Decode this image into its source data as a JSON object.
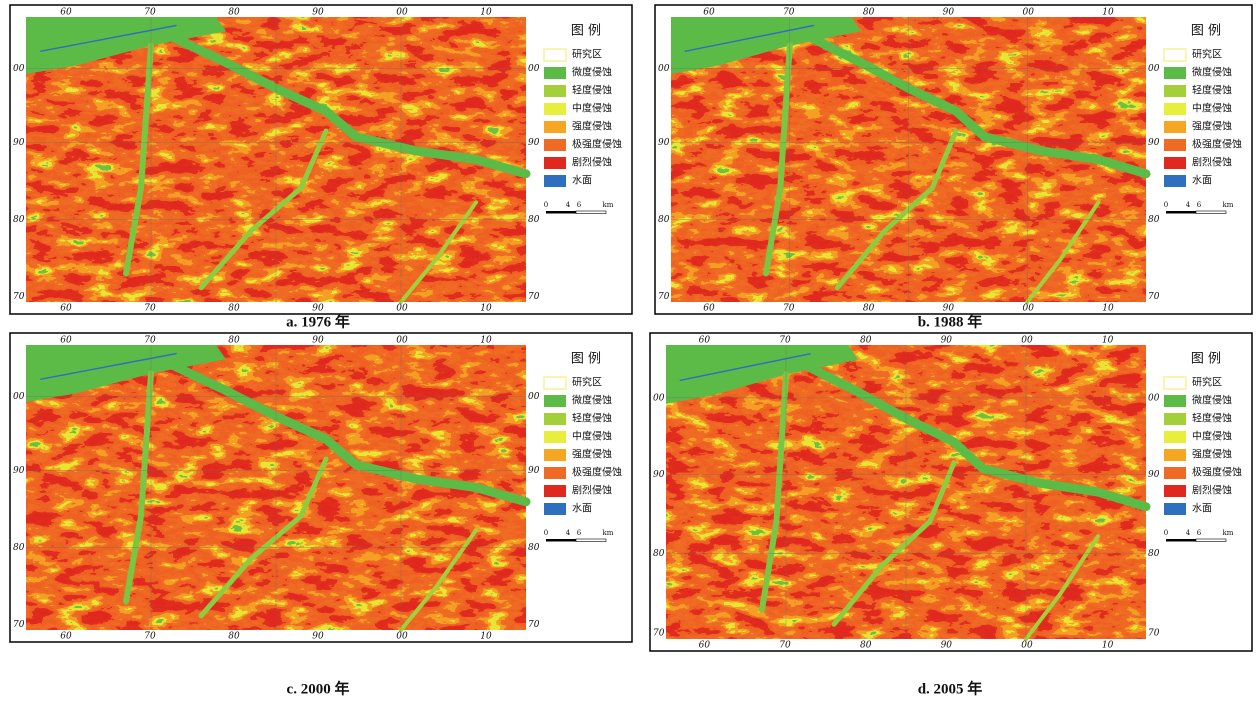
{
  "panels": [
    {
      "caption": "a. 1976 年",
      "grid_top": [
        "60",
        "70",
        "80",
        "90",
        "00",
        "10"
      ],
      "grid_side": [
        "00",
        "90",
        "80",
        "70"
      ],
      "legend": {
        "title": "图 例",
        "items": [
          {
            "label": "研究区",
            "color": "#fbf3b0"
          },
          {
            "label": "微度侵蚀",
            "color": "#5cbb46"
          },
          {
            "label": "轻度侵蚀",
            "color": "#a3d03a"
          },
          {
            "label": "中度侵蚀",
            "color": "#e8ee3c"
          },
          {
            "label": "强度侵蚀",
            "color": "#f5a623"
          },
          {
            "label": "极强度侵蚀",
            "color": "#ef6a24"
          },
          {
            "label": "剧烈侵蚀",
            "color": "#e0281f"
          },
          {
            "label": "水面",
            "color": "#2f6fc0"
          }
        ]
      },
      "scale": [
        "0",
        "4",
        "6",
        "km"
      ]
    },
    {
      "caption": "b. 1988 年",
      "grid_top": [
        "60",
        "70",
        "80",
        "90",
        "00",
        "10"
      ],
      "grid_side": [
        "00",
        "90",
        "80",
        "70"
      ],
      "legend": {
        "title": "图 例",
        "items": [
          {
            "label": "研究区",
            "color": "#fbf3b0"
          },
          {
            "label": "微度侵蚀",
            "color": "#5cbb46"
          },
          {
            "label": "轻度侵蚀",
            "color": "#a3d03a"
          },
          {
            "label": "中度侵蚀",
            "color": "#e8ee3c"
          },
          {
            "label": "强度侵蚀",
            "color": "#f5a623"
          },
          {
            "label": "极强度侵蚀",
            "color": "#ef6a24"
          },
          {
            "label": "剧烈侵蚀",
            "color": "#e0281f"
          },
          {
            "label": "水面",
            "color": "#2f6fc0"
          }
        ]
      },
      "scale": [
        "0",
        "4",
        "6",
        "km"
      ]
    },
    {
      "caption": "c. 2000 年",
      "grid_top": [
        "60",
        "70",
        "80",
        "90",
        "00",
        "10"
      ],
      "grid_side": [
        "00",
        "90",
        "80",
        "70"
      ],
      "legend": {
        "title": "图 例",
        "items": [
          {
            "label": "研究区",
            "color": "#fbf3b0"
          },
          {
            "label": "微度侵蚀",
            "color": "#5cbb46"
          },
          {
            "label": "轻度侵蚀",
            "color": "#a3d03a"
          },
          {
            "label": "中度侵蚀",
            "color": "#e8ee3c"
          },
          {
            "label": "强度侵蚀",
            "color": "#f5a623"
          },
          {
            "label": "极强度侵蚀",
            "color": "#ef6a24"
          },
          {
            "label": "剧烈侵蚀",
            "color": "#e0281f"
          },
          {
            "label": "水面",
            "color": "#2f6fc0"
          }
        ]
      },
      "scale": [
        "0",
        "4",
        "6",
        "km"
      ]
    },
    {
      "caption": "d. 2005 年",
      "grid_top": [
        "60",
        "70",
        "80",
        "90",
        "00",
        "10"
      ],
      "grid_side": [
        "00",
        "90",
        "80",
        "70"
      ],
      "legend": {
        "title": "图 例",
        "items": [
          {
            "label": "研究区",
            "color": "#fbf3b0"
          },
          {
            "label": "微度侵蚀",
            "color": "#5cbb46"
          },
          {
            "label": "轻度侵蚀",
            "color": "#a3d03a"
          },
          {
            "label": "中度侵蚀",
            "color": "#e8ee3c"
          },
          {
            "label": "强度侵蚀",
            "color": "#f5a623"
          },
          {
            "label": "极强度侵蚀",
            "color": "#ef6a24"
          },
          {
            "label": "剧烈侵蚀",
            "color": "#e0281f"
          },
          {
            "label": "水面",
            "color": "#2f6fc0"
          }
        ]
      },
      "scale": [
        "0",
        "4",
        "6",
        "km"
      ]
    }
  ]
}
